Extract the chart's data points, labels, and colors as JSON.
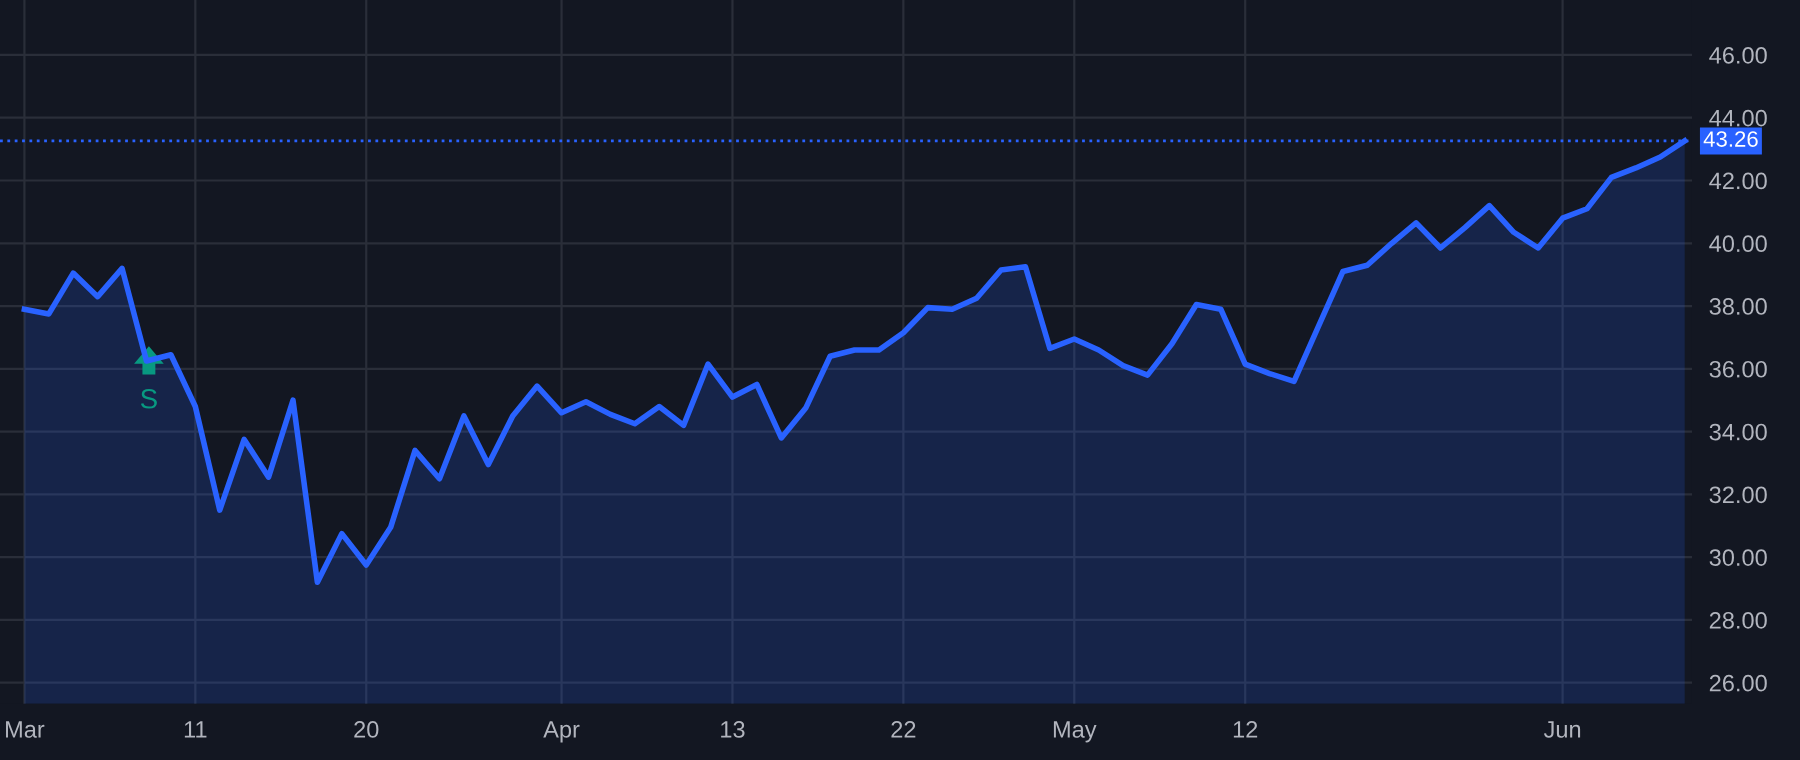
{
  "chart_data": {
    "type": "area",
    "categories": [
      "Mar",
      null,
      null,
      null,
      null,
      null,
      null,
      "11",
      null,
      null,
      null,
      null,
      null,
      null,
      "20",
      null,
      null,
      null,
      null,
      null,
      null,
      null,
      "Apr",
      null,
      null,
      null,
      null,
      null,
      null,
      "13",
      null,
      null,
      null,
      null,
      null,
      null,
      "22",
      null,
      null,
      null,
      null,
      null,
      null,
      "May",
      null,
      null,
      null,
      null,
      null,
      null,
      "12",
      null,
      null,
      null,
      null,
      null,
      null,
      null,
      null,
      null,
      null,
      null,
      null,
      "Jun",
      null,
      null,
      null,
      null,
      null
    ],
    "series": [
      {
        "color": "#2962ff",
        "values": [
          37.9,
          37.75,
          39.05,
          38.3,
          39.2,
          36.25,
          36.45,
          34.8,
          31.5,
          33.75,
          32.55,
          35.0,
          29.2,
          30.75,
          29.75,
          30.95,
          33.4,
          32.5,
          34.5,
          32.95,
          34.5,
          35.45,
          34.6,
          34.95,
          34.55,
          34.25,
          34.8,
          34.2,
          36.15,
          35.1,
          35.5,
          33.8,
          34.75,
          36.4,
          36.6,
          36.6,
          37.15,
          37.95,
          37.9,
          38.25,
          39.15,
          39.25,
          36.65,
          36.95,
          36.6,
          36.1,
          35.8,
          36.8,
          38.05,
          37.9,
          36.15,
          35.85,
          35.6,
          37.35,
          39.1,
          39.3,
          40.0,
          40.65,
          39.85,
          40.5,
          41.2,
          40.35,
          39.85,
          40.8,
          41.1,
          42.1,
          42.4,
          42.75,
          43.26
        ]
      }
    ],
    "ylim": [
      25.33,
      47.75
    ],
    "yticks": [
      {
        "value": 26,
        "label": "26.00"
      },
      {
        "value": 28,
        "label": "28.00"
      },
      {
        "value": 30,
        "label": "30.00"
      },
      {
        "value": 32,
        "label": "32.00"
      },
      {
        "value": 34,
        "label": "34.00"
      },
      {
        "value": 36,
        "label": "36.00"
      },
      {
        "value": 38,
        "label": "38.00"
      },
      {
        "value": 40,
        "label": "40.00"
      },
      {
        "value": 42,
        "label": "42.00"
      },
      {
        "value": 44,
        "label": "44.00"
      },
      {
        "value": 46,
        "label": "46.00"
      }
    ],
    "ref_lines": [
      {
        "axis": "y",
        "value": 43.26,
        "label": "43.26",
        "color": "#2962ff",
        "line_style": "dotted"
      }
    ],
    "annotations": [
      "S"
    ],
    "grid": true
  }
}
